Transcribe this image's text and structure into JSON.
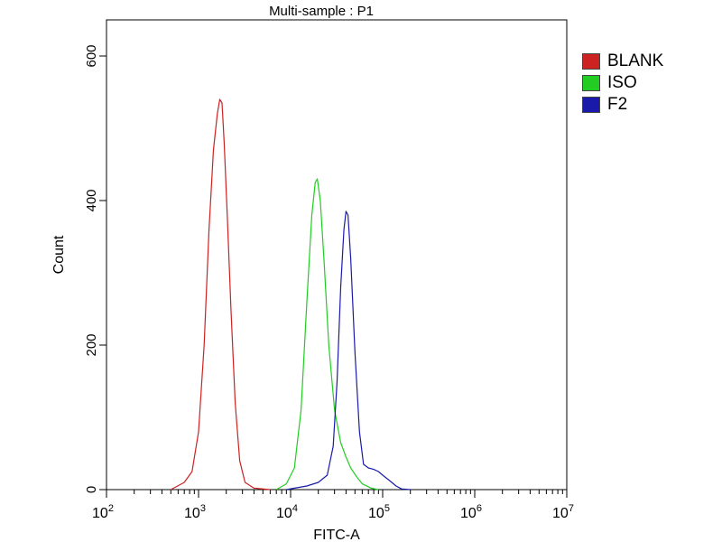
{
  "chart_data": {
    "type": "line",
    "title": "Multi-sample : P1",
    "xlabel": "FITC-A",
    "ylabel": "Count",
    "x_scale": "log",
    "xlim": [
      100,
      10000000
    ],
    "ylim": [
      0,
      650
    ],
    "x_ticks": [
      {
        "value": 100,
        "base": "10",
        "exp": "2"
      },
      {
        "value": 1000,
        "base": "10",
        "exp": "3"
      },
      {
        "value": 10000,
        "base": "10",
        "exp": "4"
      },
      {
        "value": 100000,
        "base": "10",
        "exp": "5"
      },
      {
        "value": 1000000,
        "base": "10",
        "exp": "6"
      },
      {
        "value": 10000000,
        "base": "10",
        "exp": "7"
      }
    ],
    "y_ticks": [
      0,
      200,
      400,
      600
    ],
    "grid": false,
    "legend_position": "right",
    "series": [
      {
        "name": "BLANK",
        "color": "#cc2222",
        "points": [
          [
            500,
            0
          ],
          [
            700,
            10
          ],
          [
            850,
            25
          ],
          [
            1000,
            80
          ],
          [
            1150,
            200
          ],
          [
            1300,
            360
          ],
          [
            1450,
            470
          ],
          [
            1600,
            520
          ],
          [
            1700,
            540
          ],
          [
            1800,
            535
          ],
          [
            1900,
            480
          ],
          [
            2050,
            380
          ],
          [
            2250,
            250
          ],
          [
            2500,
            120
          ],
          [
            2800,
            40
          ],
          [
            3200,
            10
          ],
          [
            4000,
            2
          ],
          [
            6000,
            0
          ]
        ]
      },
      {
        "name": "ISO",
        "color": "#22cc22",
        "points": [
          [
            7000,
            0
          ],
          [
            9000,
            8
          ],
          [
            11000,
            30
          ],
          [
            13000,
            110
          ],
          [
            15000,
            260
          ],
          [
            17000,
            380
          ],
          [
            18500,
            425
          ],
          [
            19500,
            430
          ],
          [
            21000,
            400
          ],
          [
            23000,
            320
          ],
          [
            26000,
            200
          ],
          [
            30000,
            110
          ],
          [
            35000,
            65
          ],
          [
            40000,
            45
          ],
          [
            45000,
            30
          ],
          [
            52000,
            18
          ],
          [
            60000,
            8
          ],
          [
            75000,
            2
          ],
          [
            90000,
            0
          ]
        ]
      },
      {
        "name": "F2",
        "color": "#1a1aaa",
        "points": [
          [
            9000,
            0
          ],
          [
            15000,
            5
          ],
          [
            20000,
            10
          ],
          [
            25000,
            20
          ],
          [
            29000,
            60
          ],
          [
            32000,
            150
          ],
          [
            35000,
            280
          ],
          [
            38000,
            360
          ],
          [
            40000,
            385
          ],
          [
            42000,
            380
          ],
          [
            45000,
            320
          ],
          [
            50000,
            190
          ],
          [
            56000,
            80
          ],
          [
            62000,
            35
          ],
          [
            70000,
            30
          ],
          [
            80000,
            28
          ],
          [
            90000,
            25
          ],
          [
            100000,
            20
          ],
          [
            120000,
            12
          ],
          [
            140000,
            5
          ],
          [
            160000,
            1
          ],
          [
            200000,
            0
          ]
        ]
      }
    ]
  }
}
